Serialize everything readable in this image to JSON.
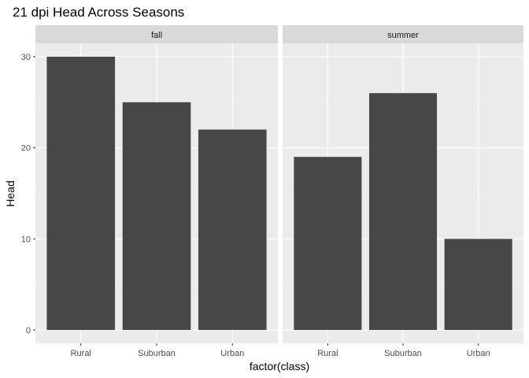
{
  "chart_data": {
    "type": "bar",
    "title": "21 dpi Head Across Seasons",
    "xlabel": "factor(class)",
    "ylabel": "Head",
    "categories": [
      "Rural",
      "Suburban",
      "Urban"
    ],
    "ylim": [
      0,
      32
    ],
    "yticks": [
      0,
      10,
      20,
      30
    ],
    "grid": true,
    "legend": "none",
    "bar_color": "#474747",
    "panel_background": "#ebebeb",
    "strip_background": "#d9d9d9",
    "facets": [
      {
        "label": "fall",
        "values": [
          30,
          25,
          22
        ]
      },
      {
        "label": "summer",
        "values": [
          19,
          26,
          10
        ]
      }
    ]
  }
}
